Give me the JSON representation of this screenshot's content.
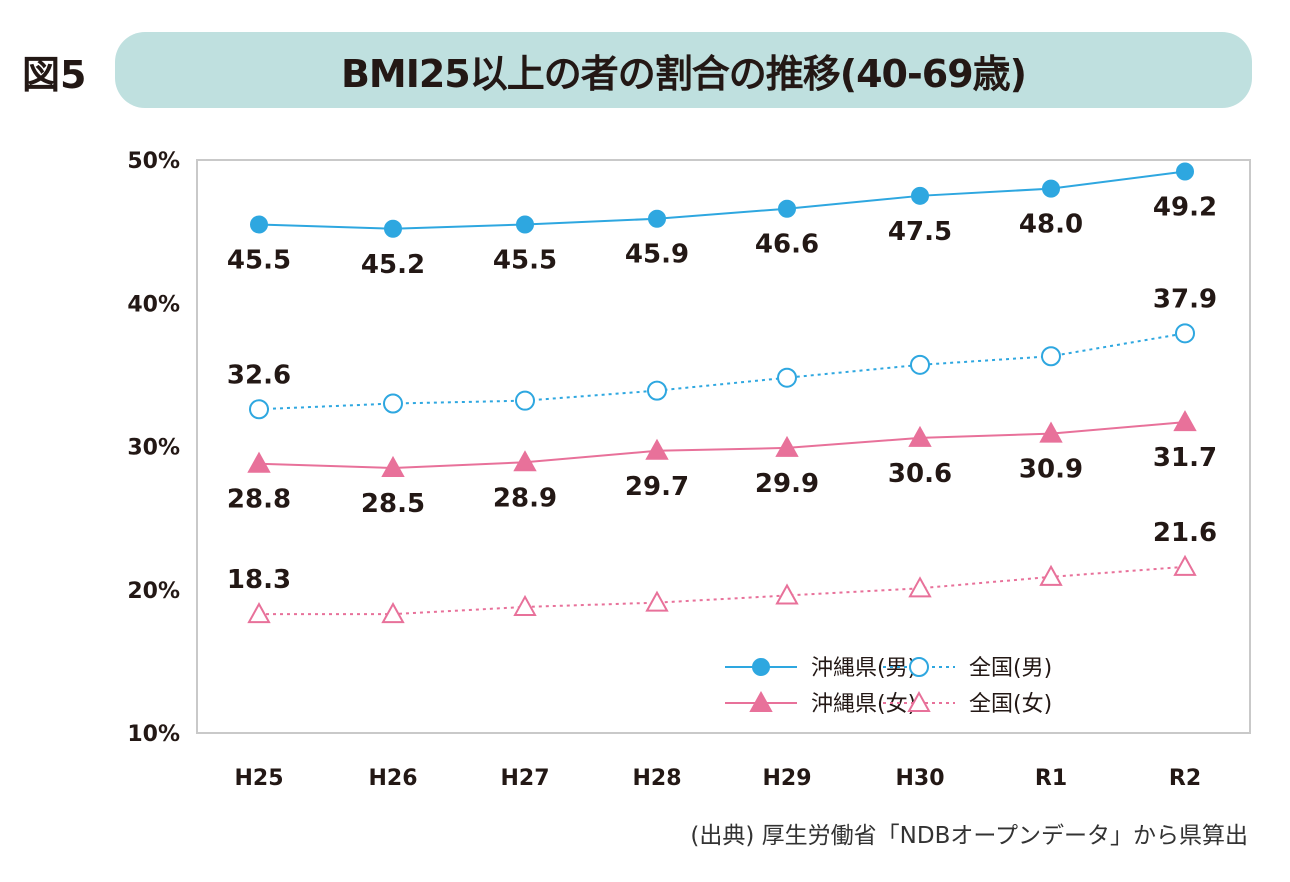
{
  "figure_label": "図5",
  "chart_data": {
    "type": "line",
    "title": "BMI25以上の者の割合の推移(40-69歳)",
    "categories": [
      "H25",
      "H26",
      "H27",
      "H28",
      "H29",
      "H30",
      "R1",
      "R2"
    ],
    "y_ticks": [
      "10%",
      "20%",
      "30%",
      "40%",
      "50%"
    ],
    "ylim": [
      10,
      50
    ],
    "y_unit": "%",
    "grid": false,
    "legend_position": "bottom-right",
    "series": [
      {
        "name": "沖縄県(男)",
        "color": "#2ea7e0",
        "line": "solid",
        "marker": "filled-circle",
        "values": [
          45.5,
          45.2,
          45.5,
          45.9,
          46.6,
          47.5,
          48.0,
          49.2
        ],
        "labels": [
          "45.5",
          "45.2",
          "45.5",
          "45.9",
          "46.6",
          "47.5",
          "48.0",
          "49.2"
        ]
      },
      {
        "name": "全国(男)",
        "color": "#2ea7e0",
        "line": "dotted",
        "marker": "open-circle",
        "values": [
          32.6,
          33.0,
          33.2,
          33.9,
          34.8,
          35.7,
          36.3,
          37.9
        ],
        "labels": [
          "32.6",
          "",
          "",
          "",
          "",
          "",
          "",
          "37.9"
        ]
      },
      {
        "name": "沖縄県(女)",
        "color": "#e8719a",
        "line": "solid",
        "marker": "filled-triangle",
        "values": [
          28.8,
          28.5,
          28.9,
          29.7,
          29.9,
          30.6,
          30.9,
          31.7
        ],
        "labels": [
          "28.8",
          "28.5",
          "28.9",
          "29.7",
          "29.9",
          "30.6",
          "30.9",
          "31.7"
        ]
      },
      {
        "name": "全国(女)",
        "color": "#e8719a",
        "line": "dotted",
        "marker": "open-triangle",
        "values": [
          18.3,
          18.3,
          18.8,
          19.1,
          19.6,
          20.1,
          20.9,
          21.6
        ],
        "labels": [
          "18.3",
          "",
          "",
          "",
          "",
          "",
          "",
          "21.6"
        ]
      }
    ]
  },
  "source": "(出典) 厚生労働省「NDBオープンデータ」から県算出"
}
